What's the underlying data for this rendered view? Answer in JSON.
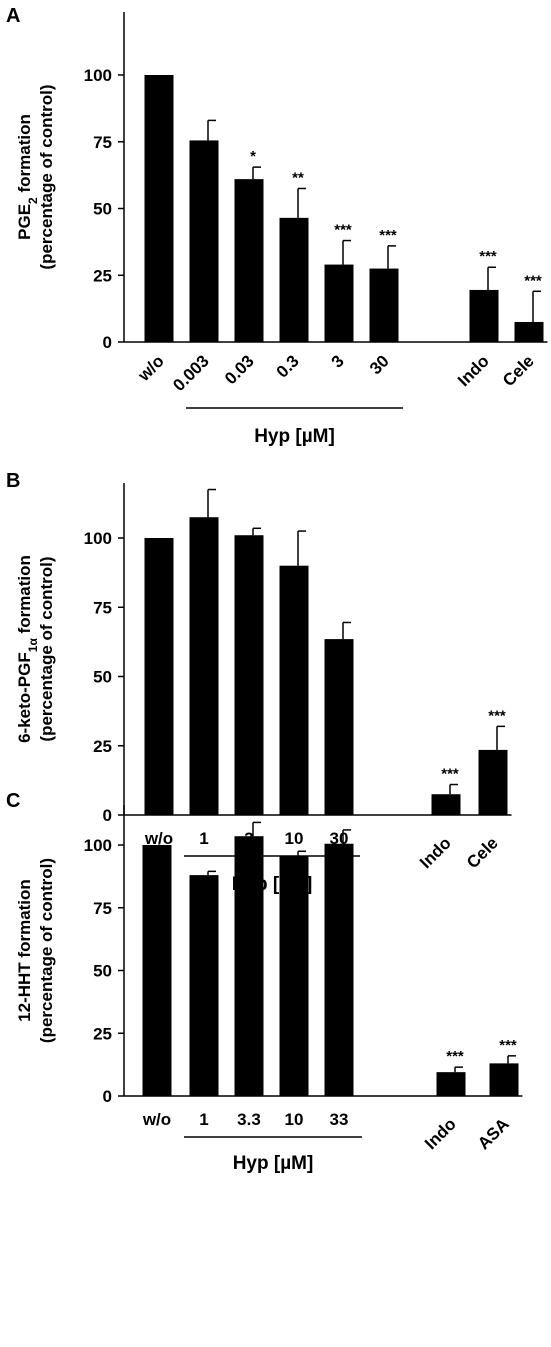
{
  "chart_data": [
    {
      "type": "bar",
      "panel": "A",
      "ylabel_line1": "PGE2 formation",
      "ylabel_main": "PGE",
      "ylabel_sub": "2",
      "ylabel_rest": " formation",
      "ylabel_line2": "(percentage of control)",
      "ylim": [
        0,
        125
      ],
      "yticks": [
        "0",
        "25",
        "50",
        "75",
        "100"
      ],
      "ytick_values": [
        0,
        25,
        50,
        75,
        100
      ],
      "categories": [
        "w/o",
        "0.003",
        "0.03",
        "0.3",
        "3",
        "30",
        "Indo",
        "Cele"
      ],
      "values": [
        100,
        75.5,
        61,
        46.5,
        29,
        27.5,
        19.5,
        7.5
      ],
      "errors": [
        0,
        7.5,
        4.5,
        11,
        9,
        8.5,
        8.5,
        11.5
      ],
      "significance": [
        "",
        "",
        "*",
        "**",
        "***",
        "***",
        "***",
        "***"
      ],
      "group_label": "Hyp [µM]",
      "group_range": [
        1,
        5
      ],
      "label_rotation": -45
    },
    {
      "type": "bar",
      "panel": "B",
      "ylabel_line1": "6-keto-PGF1α formation",
      "ylabel_main": "6-keto-PGF",
      "ylabel_sub": "1α",
      "ylabel_rest": " formation",
      "ylabel_line2": "(percentage of control)",
      "ylim": [
        0,
        125
      ],
      "yticks": [
        "0",
        "25",
        "50",
        "75",
        "100"
      ],
      "ytick_values": [
        0,
        25,
        50,
        75,
        100
      ],
      "categories": [
        "w/o",
        "1",
        "3",
        "10",
        "30",
        "Indo",
        "Cele"
      ],
      "values": [
        100,
        107.5,
        101,
        90,
        63.5,
        7.5,
        23.5
      ],
      "errors": [
        0,
        10,
        2.5,
        12.5,
        6,
        3.5,
        8.5
      ],
      "significance": [
        "",
        "",
        "",
        "",
        "",
        "***",
        "***"
      ],
      "group_label": "Hyp [µM]",
      "group_range": [
        1,
        4
      ],
      "label_rotation": [
        0,
        0,
        0,
        0,
        0,
        -45,
        -45
      ]
    },
    {
      "type": "bar",
      "panel": "C",
      "ylabel_line1": "12-HHT formation",
      "ylabel_line2": "(percentage of control)",
      "ylim": [
        0,
        120
      ],
      "yticks": [
        "0",
        "25",
        "50",
        "75",
        "100"
      ],
      "ytick_values": [
        0,
        25,
        50,
        75,
        100
      ],
      "categories": [
        "w/o",
        "1",
        "3.3",
        "10",
        "33",
        "Indo",
        "ASA"
      ],
      "values": [
        100,
        88,
        103.5,
        95.5,
        100.5,
        9.5,
        13
      ],
      "errors": [
        0,
        1.5,
        5.5,
        2,
        5.5,
        2,
        3
      ],
      "significance": [
        "",
        "",
        "",
        "",
        "",
        "***",
        "***"
      ],
      "group_label": "Hyp [µM]",
      "group_range": [
        1,
        4
      ],
      "label_rotation": [
        0,
        0,
        0,
        0,
        0,
        -45,
        -45
      ]
    }
  ]
}
